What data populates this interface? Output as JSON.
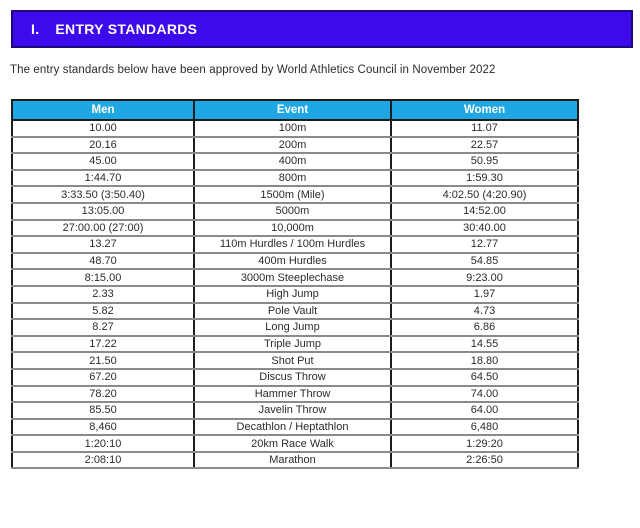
{
  "banner": {
    "numeral": "I.",
    "title": "ENTRY STANDARDS"
  },
  "intro": "The entry standards below have been approved by World Athletics Council in November 2022",
  "table": {
    "headers": [
      "Men",
      "Event",
      "Women"
    ],
    "rows": [
      [
        "10.00",
        "100m",
        "11.07"
      ],
      [
        "20.16",
        "200m",
        "22.57"
      ],
      [
        "45.00",
        "400m",
        "50.95"
      ],
      [
        "1:44.70",
        "800m",
        "1:59.30"
      ],
      [
        "3:33.50 (3:50.40)",
        "1500m (Mile)",
        "4:02.50 (4:20.90)"
      ],
      [
        "13:05.00",
        "5000m",
        "14:52.00"
      ],
      [
        "27:00.00 (27:00)",
        "10,000m",
        "30:40.00"
      ],
      [
        "13.27",
        "110m Hurdles / 100m Hurdles",
        "12.77"
      ],
      [
        "48.70",
        "400m Hurdles",
        "54.85"
      ],
      [
        "8:15.00",
        "3000m Steeplechase",
        "9:23.00"
      ],
      [
        "2.33",
        "High Jump",
        "1.97"
      ],
      [
        "5.82",
        "Pole Vault",
        "4.73"
      ],
      [
        "8.27",
        "Long Jump",
        "6.86"
      ],
      [
        "17.22",
        "Triple Jump",
        "14.55"
      ],
      [
        "21.50",
        "Shot Put",
        "18.80"
      ],
      [
        "67.20",
        "Discus Throw",
        "64.50"
      ],
      [
        "78.20",
        "Hammer Throw",
        "74.00"
      ],
      [
        "85.50",
        "Javelin Throw",
        "64.00"
      ],
      [
        "8,460",
        "Decathlon / Heptathlon",
        "6,480"
      ],
      [
        "1:20:10",
        "20km Race Walk",
        "1:29:20"
      ],
      [
        "2:08:10",
        "Marathon",
        "2:26:50"
      ]
    ]
  },
  "colors": {
    "banner_bg": "#3c0aeb",
    "banner_border": "#1c0a7a",
    "table_header_bg": "#1fa7e4",
    "table_border_outer": "#1c1c1c",
    "table_row_separator": "#8a8a8a",
    "text": "#2b2b2b",
    "header_text": "#ffffff"
  }
}
